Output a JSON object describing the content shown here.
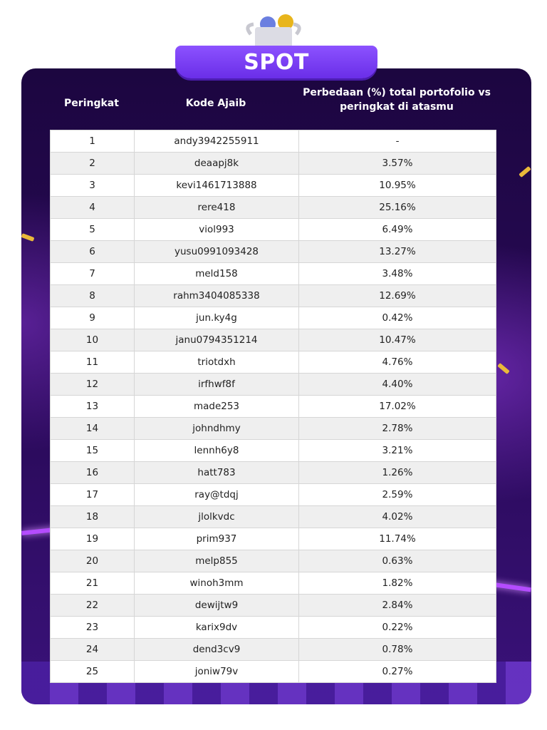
{
  "banner": {
    "title": "SPOT",
    "icon": "trophy-with-coins-icon"
  },
  "colors": {
    "background": "#2a0a5a",
    "banner": "#7a3ff5",
    "row_alt": "#efefef"
  },
  "table": {
    "headers": [
      "Peringkat",
      "Kode Ajaib",
      "Perbedaan (%) total portofolio vs peringkat di atasmu"
    ],
    "rows": [
      [
        "1",
        "andy3942255911",
        "-"
      ],
      [
        "2",
        "deaapj8k",
        "3.57%"
      ],
      [
        "3",
        "kevi1461713888",
        "10.95%"
      ],
      [
        "4",
        "rere418",
        "25.16%"
      ],
      [
        "5",
        "viol993",
        "6.49%"
      ],
      [
        "6",
        "yusu0991093428",
        "13.27%"
      ],
      [
        "7",
        "meld158",
        "3.48%"
      ],
      [
        "8",
        "rahm3404085338",
        "12.69%"
      ],
      [
        "9",
        "jun.ky4g",
        "0.42%"
      ],
      [
        "10",
        "janu0794351214",
        "10.47%"
      ],
      [
        "11",
        "triotdxh",
        "4.76%"
      ],
      [
        "12",
        "irfhwf8f",
        "4.40%"
      ],
      [
        "13",
        "made253",
        "17.02%"
      ],
      [
        "14",
        "johndhmy",
        "2.78%"
      ],
      [
        "15",
        "lennh6y8",
        "3.21%"
      ],
      [
        "16",
        "hatt783",
        "1.26%"
      ],
      [
        "17",
        "ray@tdqj",
        "2.59%"
      ],
      [
        "18",
        "jlolkvdc",
        "4.02%"
      ],
      [
        "19",
        "prim937",
        "11.74%"
      ],
      [
        "20",
        "melp855",
        "0.63%"
      ],
      [
        "21",
        "winoh3mm",
        "1.82%"
      ],
      [
        "22",
        "dewijtw9",
        "2.84%"
      ],
      [
        "23",
        "karix9dv",
        "0.22%"
      ],
      [
        "24",
        "dend3cv9",
        "0.78%"
      ],
      [
        "25",
        "joniw79v",
        "0.27%"
      ]
    ]
  }
}
